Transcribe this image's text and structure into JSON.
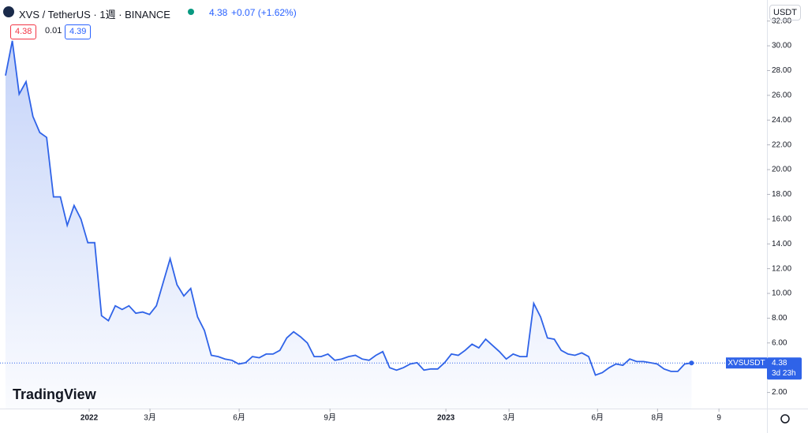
{
  "header": {
    "symbol": "XVS / TetherUS · 1週 · BINANCE",
    "last": "4.38",
    "change": "+0.07 (+1.62%)",
    "sell": "4.38",
    "spread": "0.01",
    "buy": "4.39",
    "currency": "USDT",
    "brand": "TradingView"
  },
  "chart_data": {
    "type": "area",
    "color": "#2f63e8",
    "values": [
      27.6,
      30.4,
      26.1,
      27.1,
      24.3,
      23.0,
      22.6,
      17.8,
      17.8,
      15.5,
      17.1,
      16.0,
      14.1,
      14.1,
      8.2,
      7.8,
      9.0,
      8.7,
      9.0,
      8.4,
      8.5,
      8.3,
      9.0,
      10.9,
      12.8,
      10.7,
      9.8,
      10.4,
      8.1,
      7.0,
      5.0,
      4.9,
      4.7,
      4.6,
      4.3,
      4.4,
      4.9,
      4.8,
      5.1,
      5.1,
      5.4,
      6.4,
      6.9,
      6.5,
      6.0,
      4.9,
      4.9,
      5.1,
      4.6,
      4.7,
      4.9,
      5.0,
      4.7,
      4.6,
      5.0,
      5.3,
      4.0,
      3.8,
      4.0,
      4.3,
      4.4,
      3.8,
      3.9,
      3.9,
      4.4,
      5.1,
      5.0,
      5.4,
      5.9,
      5.6,
      6.3,
      5.8,
      5.3,
      4.7,
      5.1,
      4.9,
      4.9,
      9.2,
      8.1,
      6.4,
      6.3,
      5.4,
      5.1,
      5.0,
      5.2,
      4.9,
      3.4,
      3.6,
      4.0,
      4.3,
      4.2,
      4.7,
      4.5,
      4.5,
      4.4,
      4.3,
      3.9,
      3.7,
      3.7,
      4.3,
      4.38
    ],
    "xlim": [
      -0.8,
      111
    ],
    "xticks": [
      {
        "value": 12.2,
        "label": "2022"
      },
      {
        "value": 21.06,
        "label": "3月"
      },
      {
        "value": 34.06,
        "label": "6月"
      },
      {
        "value": 47.3,
        "label": "9月"
      },
      {
        "value": 64.2,
        "label": "2023"
      },
      {
        "value": 73.4,
        "label": "3月"
      },
      {
        "value": 86.3,
        "label": "6月"
      },
      {
        "value": 95.05,
        "label": "8月"
      },
      {
        "value": 104.0,
        "label": "9"
      }
    ],
    "ylim": [
      0.7,
      33.7
    ],
    "yticks": [
      {
        "value": 2,
        "label": "2.00"
      },
      {
        "value": 4,
        "label": "4.00"
      },
      {
        "value": 6,
        "label": "6.00"
      },
      {
        "value": 8,
        "label": "8.00"
      },
      {
        "value": 10,
        "label": "10.00"
      },
      {
        "value": 12,
        "label": "12.00"
      },
      {
        "value": 14,
        "label": "14.00"
      },
      {
        "value": 16,
        "label": "16.00"
      },
      {
        "value": 18,
        "label": "18.00"
      },
      {
        "value": 20,
        "label": "20.00"
      },
      {
        "value": 22,
        "label": "22.00"
      },
      {
        "value": 24,
        "label": "24.00"
      },
      {
        "value": 26,
        "label": "26.00"
      },
      {
        "value": 28,
        "label": "28.00"
      },
      {
        "value": 30,
        "label": "30.00"
      },
      {
        "value": 32,
        "label": "32.00"
      }
    ],
    "price_tag": {
      "symbol": "XVSUSDT",
      "price": 4.38,
      "countdown": "3d 23h"
    }
  }
}
